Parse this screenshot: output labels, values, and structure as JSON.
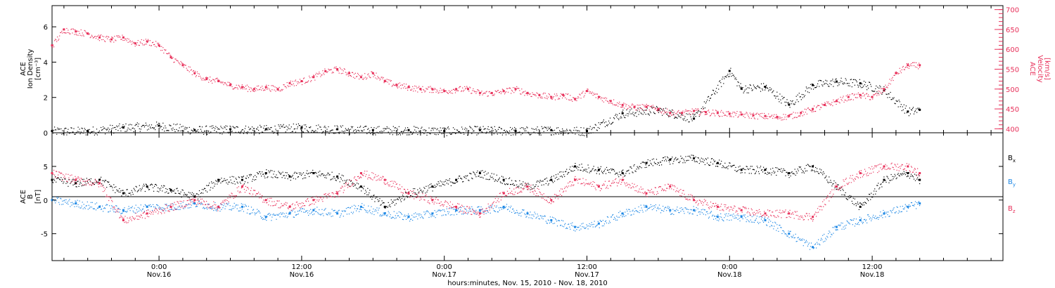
{
  "colors": {
    "black": "#000000",
    "pink": "#e8305a",
    "blue": "#1e88e5"
  },
  "x_axis": {
    "title": "hours:minutes, Nov. 15, 2010 - Nov. 18, 2010",
    "ticks": [
      {
        "hour": 24,
        "time": "0:00",
        "date": "Nov.16"
      },
      {
        "hour": 36,
        "time": "12:00",
        "date": "Nov.16"
      },
      {
        "hour": 48,
        "time": "0:00",
        "date": "Nov.17"
      },
      {
        "hour": 60,
        "time": "12:00",
        "date": "Nov.17"
      },
      {
        "hour": 72,
        "time": "0:00",
        "date": "Nov.18"
      },
      {
        "hour": 84,
        "time": "12:00",
        "date": "Nov.18"
      }
    ]
  },
  "chart_data": [
    {
      "type": "scatter",
      "panel": "top",
      "y_left_label_line1": "ACE",
      "y_left_label_line2": "Ion Density",
      "y_left_label_line3": "[cm⁻³]",
      "y_right_label_line1": "ACE",
      "y_right_label_line2": "Velocity",
      "y_right_label_line3": "[km/s]",
      "y_left_ticks": [
        "0",
        "2",
        "4",
        "6"
      ],
      "y_left_range": [
        0,
        7.2
      ],
      "y_right_ticks": [
        "400",
        "450",
        "500",
        "550",
        "600",
        "650",
        "700"
      ],
      "y_right_range": [
        390,
        710
      ],
      "x_range_hours": [
        15,
        95
      ],
      "series": [
        {
          "color": "black",
          "axis": "left",
          "x": [
            15,
            18,
            21,
            24,
            27,
            30,
            33,
            36,
            39,
            42,
            45,
            48,
            51,
            54,
            57,
            60,
            63,
            66,
            69,
            72,
            73,
            75,
            77,
            79,
            81,
            83,
            85,
            87,
            88
          ],
          "y": [
            0.1,
            0.1,
            0.3,
            0.4,
            0.15,
            0.2,
            0.2,
            0.3,
            0.2,
            0.15,
            0.15,
            0.1,
            0.15,
            0.1,
            0.15,
            0.1,
            1.1,
            1.3,
            0.8,
            3.5,
            2.5,
            2.6,
            1.6,
            2.7,
            2.9,
            2.8,
            2.4,
            1.2,
            1.3
          ]
        },
        {
          "color": "pink",
          "axis": "right",
          "x": [
            15,
            16,
            17,
            18,
            19,
            20,
            21,
            22,
            23,
            24,
            25,
            26,
            27,
            28,
            29,
            30,
            31,
            32,
            33,
            34,
            35,
            36,
            37,
            38,
            39,
            40,
            41,
            42,
            43,
            44,
            45,
            46,
            47,
            48,
            49,
            50,
            51,
            52,
            53,
            54,
            55,
            56,
            57,
            58,
            59,
            60,
            61,
            62,
            63,
            64,
            65,
            66,
            67,
            68,
            69,
            70,
            71,
            72,
            73,
            74,
            75,
            76,
            77,
            78,
            79,
            80,
            81,
            82,
            83,
            84,
            85,
            86,
            87,
            88
          ],
          "y": [
            610,
            650,
            645,
            640,
            630,
            625,
            630,
            615,
            620,
            610,
            580,
            560,
            540,
            525,
            520,
            510,
            505,
            500,
            505,
            500,
            515,
            520,
            530,
            545,
            550,
            540,
            530,
            540,
            520,
            510,
            505,
            500,
            500,
            495,
            500,
            500,
            490,
            490,
            495,
            500,
            490,
            485,
            480,
            485,
            475,
            495,
            480,
            470,
            460,
            455,
            455,
            450,
            440,
            440,
            445,
            442,
            440,
            438,
            436,
            434,
            432,
            430,
            432,
            440,
            450,
            460,
            470,
            480,
            485,
            480,
            500,
            540,
            560,
            560
          ]
        }
      ]
    },
    {
      "type": "scatter",
      "panel": "bottom",
      "y_label_line1": "ACE",
      "y_label_line2": "B",
      "y_label_line3": "[nT]",
      "y_ticks": [
        "-5",
        "0",
        "5"
      ],
      "y_range": [
        -9,
        10
      ],
      "x_range_hours": [
        15,
        95
      ],
      "legend_position": "right",
      "legend_entries": [
        "B",
        "B",
        "B"
      ],
      "legend_subs": [
        "x",
        "y",
        "z"
      ],
      "series": [
        {
          "color": "black",
          "x": [
            15,
            17,
            19,
            21,
            23,
            25,
            27,
            29,
            31,
            33,
            35,
            37,
            39,
            41,
            43,
            45,
            47,
            49,
            51,
            53,
            55,
            57,
            59,
            61,
            63,
            65,
            67,
            69,
            71,
            73,
            75,
            77,
            79,
            81,
            83,
            85,
            87,
            88
          ],
          "y": [
            3,
            2.5,
            3,
            1,
            2,
            1.5,
            0.5,
            3,
            3,
            4,
            3.5,
            4,
            3.5,
            2,
            -1,
            1,
            2,
            3,
            4,
            3,
            2,
            3,
            5,
            4.5,
            4,
            5.5,
            6,
            6.2,
            5.5,
            4.5,
            4.5,
            4,
            5,
            2,
            -1,
            3,
            4,
            3
          ]
        },
        {
          "color": "blue",
          "x": [
            15,
            17,
            19,
            21,
            23,
            25,
            27,
            29,
            31,
            33,
            35,
            37,
            39,
            41,
            43,
            45,
            47,
            49,
            51,
            53,
            55,
            57,
            59,
            61,
            63,
            65,
            67,
            69,
            71,
            73,
            75,
            77,
            79,
            81,
            83,
            85,
            87,
            88
          ],
          "y": [
            0,
            -0.5,
            -1,
            -1.5,
            -1,
            -1,
            -0.5,
            -1,
            -1,
            -2.5,
            -2,
            -1.5,
            -2,
            -1,
            -2,
            -2.5,
            -2,
            -1.5,
            -1.5,
            -1,
            -2,
            -3,
            -4,
            -3.5,
            -2,
            -1,
            -1.5,
            -1.5,
            -2.5,
            -2.5,
            -3,
            -5,
            -7,
            -4,
            -3,
            -2,
            -1,
            -0.5
          ]
        },
        {
          "color": "pink",
          "x": [
            15,
            17,
            19,
            21,
            23,
            25,
            27,
            29,
            31,
            33,
            35,
            37,
            39,
            41,
            43,
            45,
            47,
            49,
            51,
            53,
            55,
            57,
            59,
            61,
            63,
            65,
            67,
            69,
            71,
            73,
            75,
            77,
            79,
            81,
            83,
            85,
            87,
            88
          ],
          "y": [
            4,
            3,
            2.5,
            -3,
            -2,
            -1,
            0,
            -1,
            2,
            0,
            -1,
            0,
            1,
            4,
            3,
            1,
            0,
            -1,
            -2,
            1,
            2,
            0,
            3,
            2,
            3,
            1,
            2,
            0,
            -1,
            -1.5,
            -2,
            -2,
            -2.5,
            2,
            4,
            5,
            5,
            4
          ]
        }
      ]
    }
  ]
}
